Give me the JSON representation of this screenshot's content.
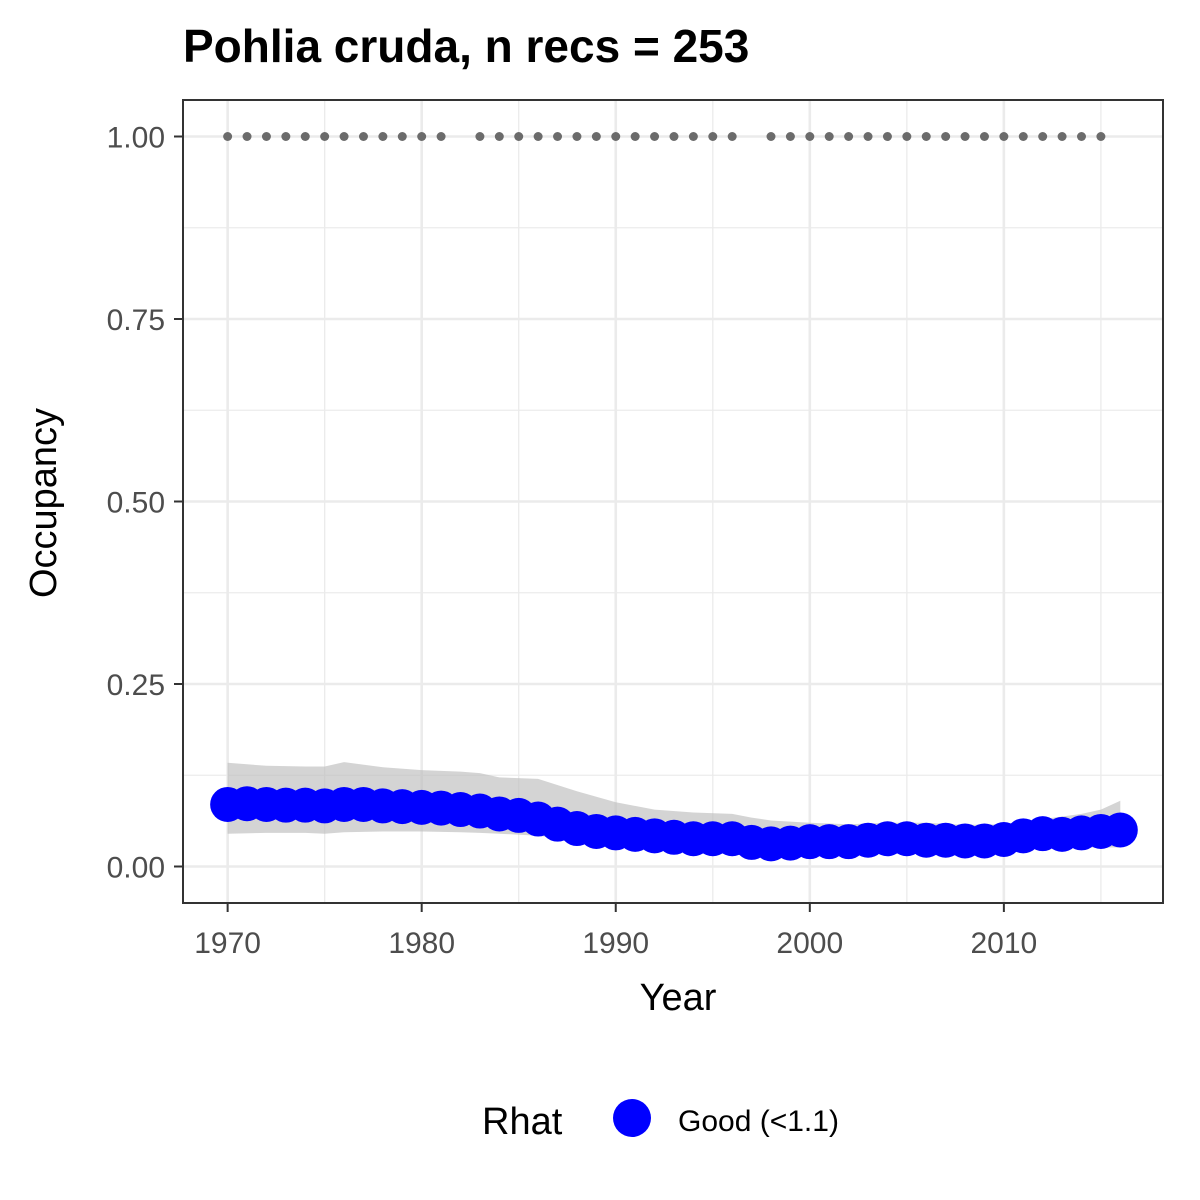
{
  "chart_data": {
    "type": "line",
    "title": "Pohlia cruda, n recs = 253",
    "xlabel": "Year",
    "ylabel": "Occupancy",
    "xlim": [
      1967.7,
      2018.2
    ],
    "ylim": [
      -0.05,
      1.05
    ],
    "x_ticks": [
      1970,
      1980,
      1990,
      2000,
      2010
    ],
    "x_tick_labels": [
      "1970",
      "1980",
      "1990",
      "2000",
      "2010"
    ],
    "y_ticks": [
      0,
      0.25,
      0.5,
      0.75,
      1.0
    ],
    "y_tick_labels": [
      "0.00",
      "0.25",
      "0.50",
      "0.75",
      "1.00"
    ],
    "grid": true,
    "legend": {
      "title": "Rhat",
      "position": "bottom",
      "entries": [
        {
          "label": "Good (<1.1)",
          "color": "#0000ff"
        }
      ]
    },
    "colors": {
      "points": "#0000ff",
      "ribbon": "#bdbdbd",
      "records": "#6b6b6b",
      "grid": "#ebebeb",
      "border": "#333333"
    },
    "series": [
      {
        "name": "Occupancy (Good (<1.1))",
        "x": [
          1970,
          1971,
          1972,
          1973,
          1974,
          1975,
          1976,
          1977,
          1978,
          1979,
          1980,
          1981,
          1982,
          1983,
          1984,
          1985,
          1986,
          1987,
          1988,
          1989,
          1990,
          1991,
          1992,
          1993,
          1994,
          1995,
          1996,
          1997,
          1998,
          1999,
          2000,
          2001,
          2002,
          2003,
          2004,
          2005,
          2006,
          2007,
          2008,
          2009,
          2010,
          2011,
          2012,
          2013,
          2014,
          2015,
          2016
        ],
        "values": [
          0.085,
          0.086,
          0.085,
          0.084,
          0.084,
          0.083,
          0.085,
          0.085,
          0.083,
          0.082,
          0.081,
          0.08,
          0.078,
          0.076,
          0.072,
          0.07,
          0.065,
          0.058,
          0.052,
          0.048,
          0.046,
          0.044,
          0.042,
          0.04,
          0.038,
          0.038,
          0.038,
          0.033,
          0.031,
          0.032,
          0.034,
          0.034,
          0.034,
          0.036,
          0.038,
          0.038,
          0.036,
          0.036,
          0.035,
          0.035,
          0.037,
          0.042,
          0.045,
          0.044,
          0.046,
          0.048,
          0.05
        ]
      },
      {
        "name": "95% credible interval",
        "x": [
          1970,
          1972,
          1974,
          1975,
          1976,
          1978,
          1980,
          1982,
          1983,
          1984,
          1986,
          1988,
          1990,
          1992,
          1994,
          1996,
          1997,
          1998,
          2000,
          2002,
          2004,
          2006,
          2008,
          2010,
          2012,
          2014,
          2015,
          2016
        ],
        "lower": [
          0.045,
          0.046,
          0.046,
          0.045,
          0.047,
          0.048,
          0.048,
          0.047,
          0.046,
          0.045,
          0.042,
          0.036,
          0.032,
          0.028,
          0.025,
          0.023,
          0.02,
          0.02,
          0.021,
          0.022,
          0.022,
          0.022,
          0.022,
          0.023,
          0.025,
          0.026,
          0.026,
          0.026
        ],
        "upper": [
          0.142,
          0.138,
          0.137,
          0.137,
          0.143,
          0.136,
          0.132,
          0.13,
          0.128,
          0.122,
          0.12,
          0.103,
          0.088,
          0.078,
          0.074,
          0.072,
          0.067,
          0.063,
          0.06,
          0.058,
          0.06,
          0.06,
          0.057,
          0.058,
          0.065,
          0.072,
          0.078,
          0.09
        ]
      },
      {
        "name": "Years with records",
        "x": [
          1970,
          1971,
          1972,
          1973,
          1974,
          1975,
          1976,
          1977,
          1978,
          1979,
          1980,
          1981,
          1983,
          1984,
          1985,
          1986,
          1987,
          1988,
          1989,
          1990,
          1991,
          1992,
          1993,
          1994,
          1995,
          1996,
          1998,
          1999,
          2000,
          2001,
          2002,
          2003,
          2004,
          2005,
          2006,
          2007,
          2008,
          2009,
          2010,
          2011,
          2012,
          2013,
          2014,
          2015
        ],
        "y": 1.0
      }
    ]
  }
}
